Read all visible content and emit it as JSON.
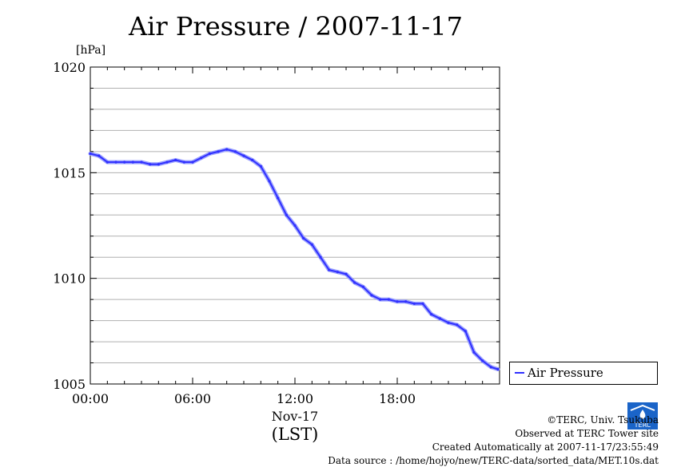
{
  "title": "Air Pressure / 2007-11-17",
  "unit_label": "[hPa]",
  "footer": {
    "copyright": "©TERC, Univ. Tsukuba",
    "site": "Observed at TERC Tower site",
    "created": "Created Automatically at 2007-11-17/23:55:49",
    "source": "Data source : /home/hojyo/new/TERC-data/sorted_data/MET.10s.dat"
  },
  "logo_text": "TERC",
  "colors": {
    "series": "#3030ff",
    "grid": "#b0b0b0"
  },
  "chart_data": {
    "type": "line",
    "title": "Air Pressure / 2007-11-17",
    "ylabel": "[hPa]",
    "xlabel": "(LST)",
    "xlabel_date": "Nov-17",
    "ylim": [
      1005,
      1020
    ],
    "xlim": [
      0,
      24
    ],
    "x_ticks": [
      {
        "value": 0,
        "label": "00:00"
      },
      {
        "value": 6,
        "label": "06:00"
      },
      {
        "value": 12,
        "label": "12:00"
      },
      {
        "value": 18,
        "label": "18:00"
      }
    ],
    "y_ticks": [
      {
        "value": 1005,
        "label": "1005"
      },
      {
        "value": 1010,
        "label": "1010"
      },
      {
        "value": 1015,
        "label": "1015"
      },
      {
        "value": 1020,
        "label": "1020"
      }
    ],
    "grid": true,
    "legend_position": "bottom-right, outside plot",
    "series": [
      {
        "name": "Air Pressure",
        "x": [
          0,
          0.5,
          1.0,
          1.5,
          2.0,
          2.5,
          3.0,
          3.5,
          4.0,
          4.5,
          5.0,
          5.5,
          6.0,
          6.5,
          7.0,
          7.5,
          8.0,
          8.5,
          9.0,
          9.5,
          10.0,
          10.5,
          11.0,
          11.5,
          12.0,
          12.5,
          13.0,
          13.5,
          14.0,
          14.5,
          15.0,
          15.5,
          16.0,
          16.5,
          17.0,
          17.5,
          18.0,
          18.5,
          19.0,
          19.5,
          20.0,
          20.5,
          21.0,
          21.5,
          22.0,
          22.5,
          23.0,
          23.5,
          23.9
        ],
        "y": [
          1015.9,
          1015.8,
          1015.5,
          1015.5,
          1015.5,
          1015.5,
          1015.5,
          1015.4,
          1015.4,
          1015.5,
          1015.6,
          1015.5,
          1015.5,
          1015.7,
          1015.9,
          1016.0,
          1016.1,
          1016.0,
          1015.8,
          1015.6,
          1015.3,
          1014.6,
          1013.8,
          1013.0,
          1012.5,
          1011.9,
          1011.6,
          1011.0,
          1010.4,
          1010.3,
          1010.2,
          1009.8,
          1009.6,
          1009.2,
          1009.0,
          1009.0,
          1008.9,
          1008.9,
          1008.8,
          1008.8,
          1008.3,
          1008.1,
          1007.9,
          1007.8,
          1007.5,
          1006.5,
          1006.1,
          1005.8,
          1005.7
        ]
      }
    ]
  }
}
